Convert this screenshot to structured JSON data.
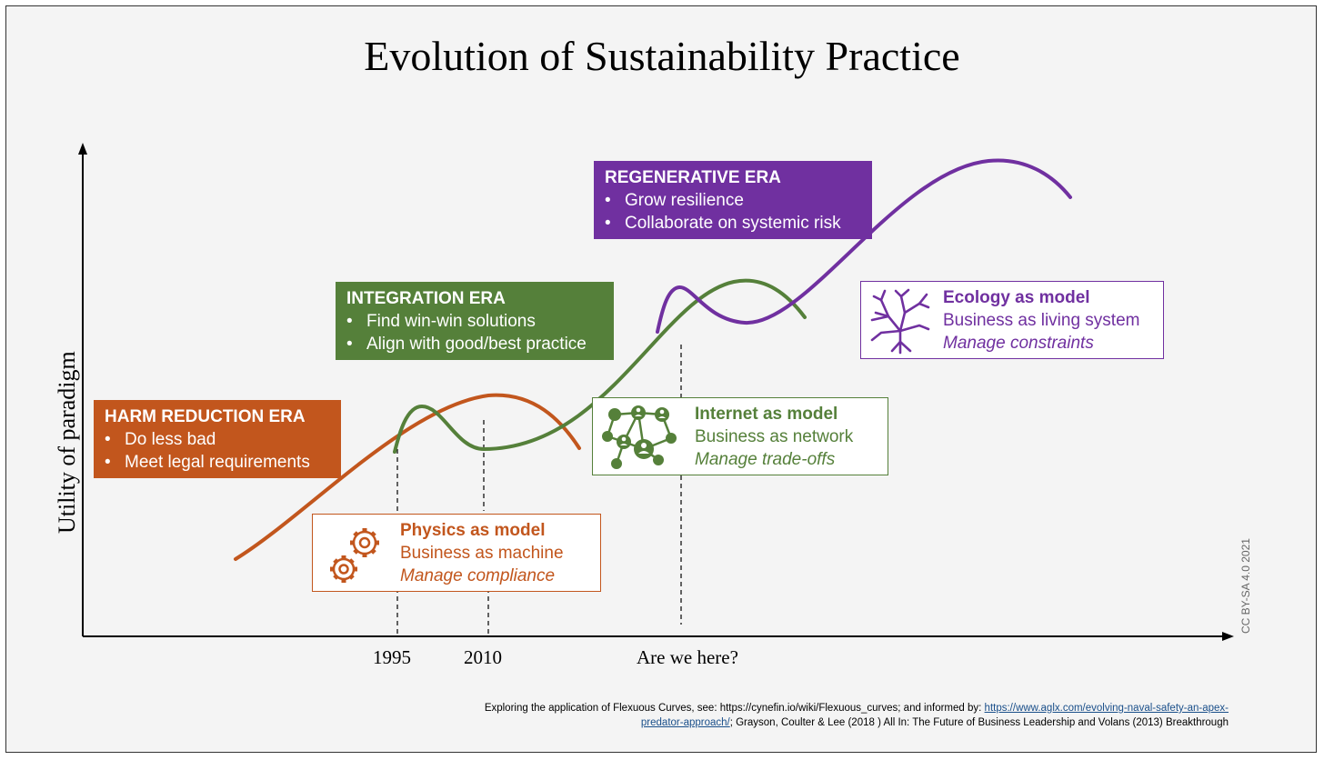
{
  "title": "Evolution of Sustainability Practice",
  "y_axis_label": "Utility of paradigm",
  "x_axis_labels": [
    "1995",
    "2010",
    "Are we here?"
  ],
  "license": "CC BY-SA 4.0 2021",
  "colors": {
    "harm": "#c2561d",
    "integration": "#55803a",
    "regenerative": "#7030a0"
  },
  "eras": [
    {
      "title": "HARM REDUCTION ERA",
      "bullets": [
        "Do less bad",
        "Meet legal requirements"
      ]
    },
    {
      "title": "INTEGRATION ERA",
      "bullets": [
        "Find win-win solutions",
        "Align with good/best practice"
      ]
    },
    {
      "title": "REGENERATIVE ERA",
      "bullets": [
        "Grow resilience",
        "Collaborate on systemic risk"
      ]
    }
  ],
  "models": [
    {
      "title": "Physics as model",
      "line2": "Business as machine",
      "line3": "Manage compliance",
      "icon": "gears-icon"
    },
    {
      "title": "Internet as model",
      "line2": "Business as network",
      "line3": "Manage trade-offs",
      "icon": "network-icon"
    },
    {
      "title": "Ecology as model",
      "line2": "Business as living system",
      "line3": "Manage constraints",
      "icon": "tree-icon"
    }
  ],
  "footnote": {
    "text1": "Exploring the application of Flexuous Curves, see: https://cynefin.io/wiki/Flexuous_curves; and informed by: ",
    "link": "https://www.aglx.com/evolving-naval-safety-an-apex-predator-approach/",
    "text2": "; Grayson, Coulter & Lee (2018 ) All In: The Future of Business Leadership and Volans (2013) Breakthrough"
  }
}
